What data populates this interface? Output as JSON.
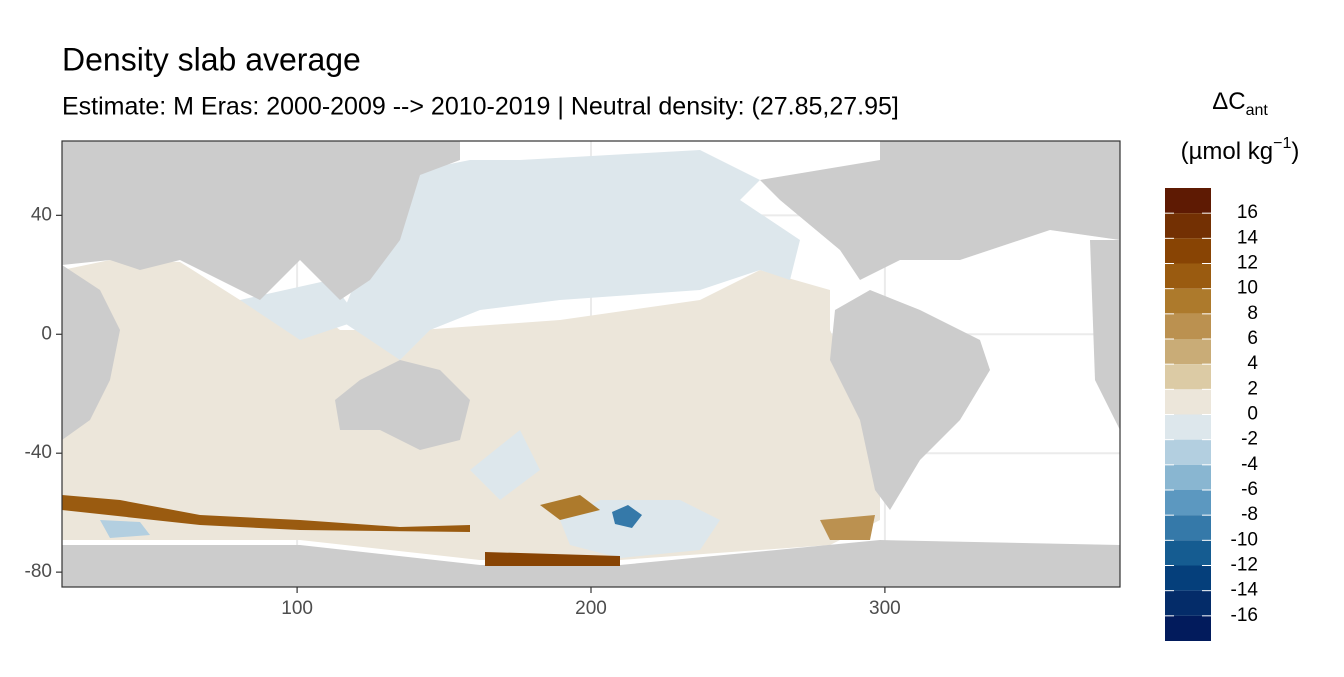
{
  "chart_data": {
    "type": "map",
    "title": "Density slab average",
    "subtitle": "Estimate: M Eras: 2000-2009 --> 2010-2019 | Neutral density: (27.85,27.95]",
    "xlim": [
      20,
      380
    ],
    "xticks": [
      100,
      200,
      300
    ],
    "ylim": [
      -85,
      65
    ],
    "yticks": [
      40,
      0,
      -40,
      -80
    ],
    "grid": true,
    "legend": {
      "title_main": "ΔC",
      "title_sub": "ant",
      "title_unit": "(µmol kg",
      "title_sup": "−1",
      "title_close": ")",
      "bins": [
        18,
        16,
        14,
        12,
        10,
        8,
        6,
        4,
        2,
        0,
        -2,
        -4,
        -6,
        -8,
        -10,
        -12,
        -14,
        -16,
        -18
      ],
      "breaks": [
        16,
        14,
        12,
        10,
        8,
        6,
        4,
        2,
        0,
        -2,
        -4,
        -6,
        -8,
        -10,
        -12,
        -14,
        -16
      ],
      "colors": [
        "#5e1a03",
        "#733003",
        "#884404",
        "#9a5b10",
        "#ad7a2c",
        "#bb9150",
        "#c9ac77",
        "#dccba5",
        "#ece6da",
        "#dde7ec",
        "#b3cfe0",
        "#89b6d1",
        "#5c98c0",
        "#3579a9",
        "#155c91",
        "#053f7b",
        "#042c69",
        "#021b5c"
      ]
    }
  }
}
